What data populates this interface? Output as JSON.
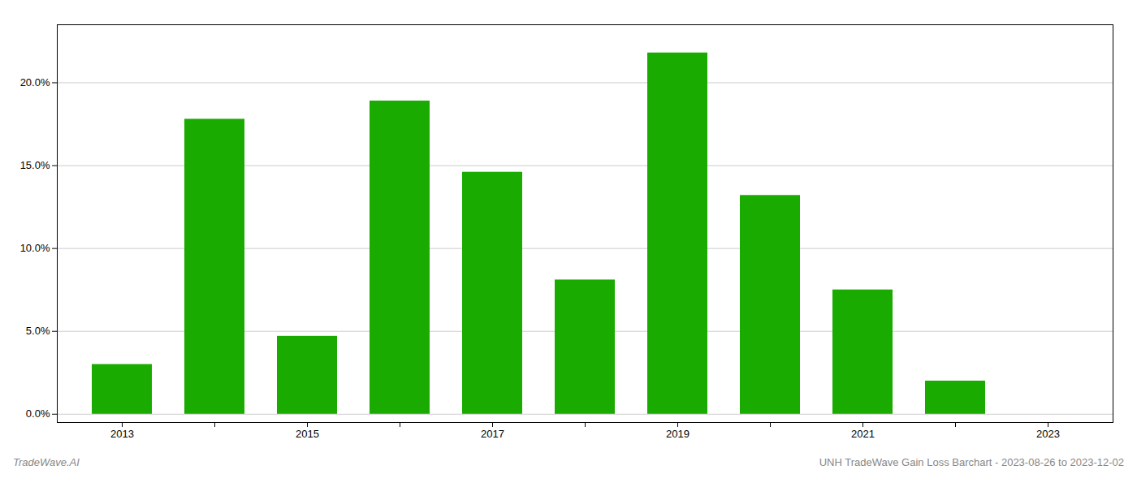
{
  "chart_data": {
    "type": "bar",
    "categories": [
      "2013",
      null,
      "2015",
      null,
      "2017",
      null,
      "2019",
      null,
      "2021",
      null,
      "2023"
    ],
    "values": [
      0.03,
      0.178,
      0.047,
      0.189,
      0.146,
      0.081,
      0.218,
      0.132,
      0.075,
      0.02,
      0.0
    ],
    "color": "#1aab00",
    "ylim": [
      -0.005,
      0.235
    ],
    "yticks": [
      {
        "value": 0.0,
        "label": "0.0%"
      },
      {
        "value": 0.05,
        "label": "5.0%"
      },
      {
        "value": 0.1,
        "label": "10.0%"
      },
      {
        "value": 0.15,
        "label": "15.0%"
      },
      {
        "value": 0.2,
        "label": "20.0%"
      }
    ],
    "grid": true,
    "annotations": [
      "TradeWave.AI",
      "UNH TradeWave Gain Loss Barchart - 2023-08-26 to 2023-12-02"
    ]
  }
}
